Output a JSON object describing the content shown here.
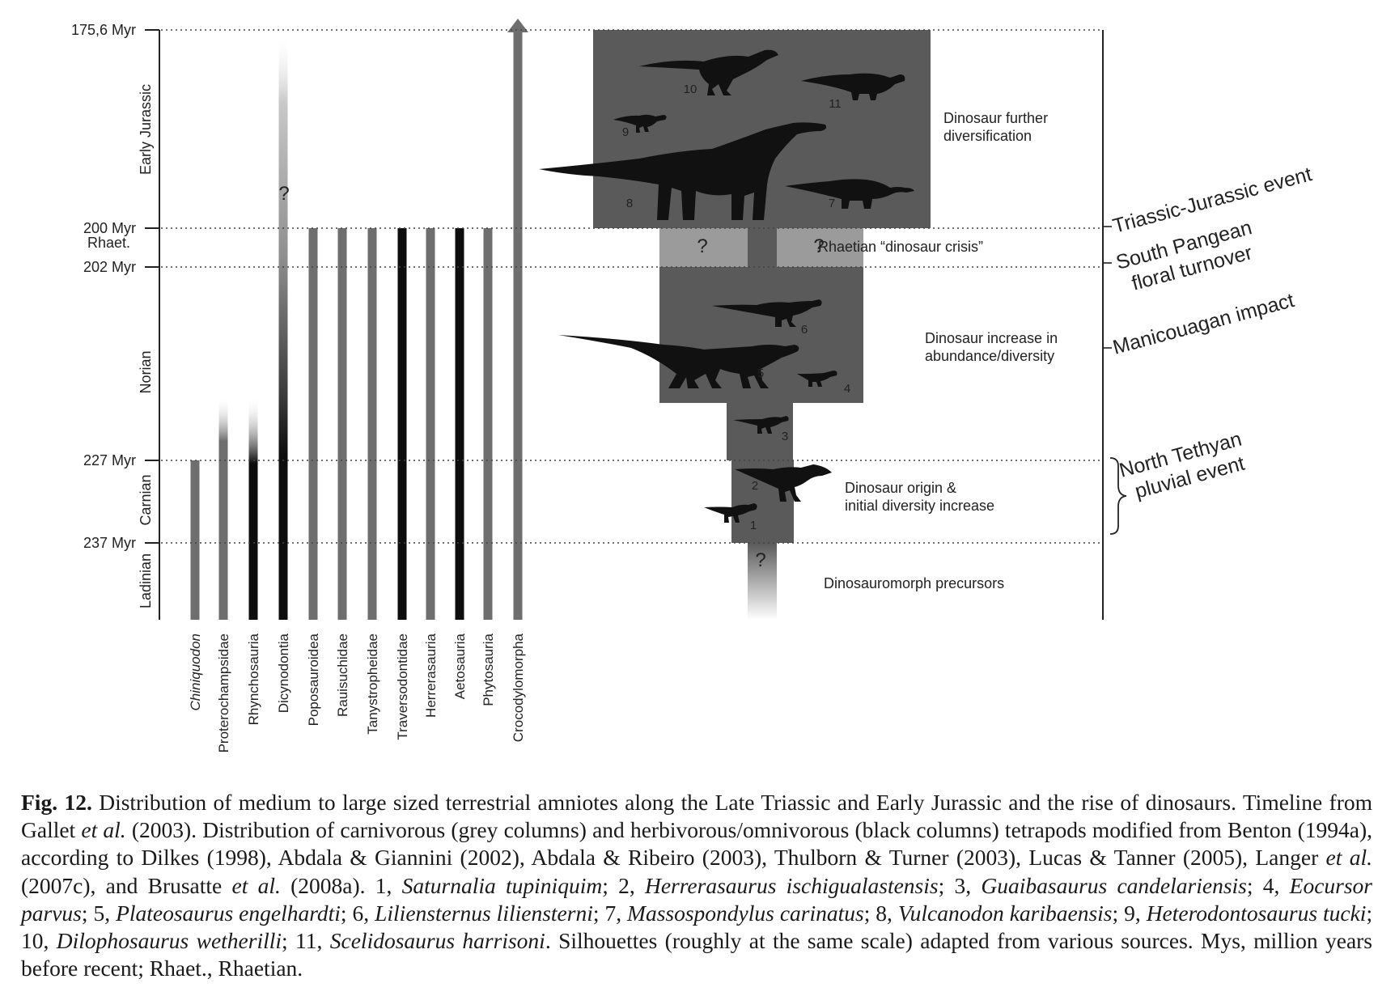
{
  "time_axis": {
    "ticks": [
      {
        "label": "175,6 Myr"
      },
      {
        "label": "200 Myr"
      },
      {
        "label": "202 Myr"
      },
      {
        "label": "227 Myr"
      },
      {
        "label": "237 Myr"
      }
    ],
    "stages": [
      "Early Jurassic",
      "Rhaet.",
      "Norian",
      "Carnian",
      "Ladinian"
    ]
  },
  "taxa": [
    {
      "name": "Chiniquodon",
      "italic": true,
      "diet": "carnivorous"
    },
    {
      "name": "Proterochampsidae",
      "diet": "carnivorous"
    },
    {
      "name": "Rhynchosauria",
      "diet": "herbivorous"
    },
    {
      "name": "Dicynodontia",
      "diet": "herbivorous",
      "uncertain_mark": "?"
    },
    {
      "name": "Poposauroidea",
      "diet": "carnivorous"
    },
    {
      "name": "Rauisuchidae",
      "diet": "carnivorous"
    },
    {
      "name": "Tanystropheidae",
      "diet": "carnivorous"
    },
    {
      "name": "Traversodontidae",
      "diet": "herbivorous"
    },
    {
      "name": "Herrerasauria",
      "diet": "carnivorous"
    },
    {
      "name": "Aetosauria",
      "diet": "herbivorous"
    },
    {
      "name": "Phytosauria",
      "diet": "carnivorous"
    },
    {
      "name": "Crocodylomorpha",
      "diet": "carnivorous"
    }
  ],
  "dinosaur_phases": [
    {
      "label": "Dinosaur further\ndiversification"
    },
    {
      "label": "Rhaetian “dinosaur crisis”"
    },
    {
      "label": "Dinosaur increase in\nabundance/diversity"
    },
    {
      "label": "Dinosaur origin &\ninitial diversity increase"
    },
    {
      "label": "Dinosauromorph precursors"
    }
  ],
  "question_marks": [
    "?",
    "?",
    "?"
  ],
  "silhouette_numbers": [
    "1",
    "2",
    "3",
    "4",
    "5",
    "6",
    "7",
    "8",
    "9",
    "10",
    "11"
  ],
  "events": [
    {
      "label": "Triassic-Jurassic event"
    },
    {
      "label": "South Pangean\nfloral turnover"
    },
    {
      "label": "Manicouagan impact"
    },
    {
      "label": "North Tethyan\npluvial event"
    }
  ],
  "colors": {
    "carnivorous": "#6e6e6e",
    "herbivorous": "#0d0d0d",
    "dino_box": "#5a5a5a",
    "crisis_box": "#9b9b9b",
    "silhouette": "#111111"
  },
  "caption": {
    "label": "Fig. 12.",
    "parts": [
      {
        "t": " Distribution of medium to large sized terrestrial amniotes along the Late Triassic and Early Jurassic and the rise of dinosaurs. Timeline from Gallet "
      },
      {
        "t": "et al.",
        "i": true
      },
      {
        "t": " (2003). Distribution of carnivorous (grey columns) and herbivorous/omnivorous (black columns) tetrapods modified from Benton (1994a), according to Dilkes (1998), Abdala & Giannini (2002), Abdala & Ribeiro (2003), Thulborn & Turner (2003), Lucas & Tanner (2005), Langer "
      },
      {
        "t": "et al.",
        "i": true
      },
      {
        "t": " (2007c), and Brusatte "
      },
      {
        "t": "et al.",
        "i": true
      },
      {
        "t": " (2008a). 1, "
      },
      {
        "t": "Saturnalia tupiniquim",
        "i": true
      },
      {
        "t": "; 2, "
      },
      {
        "t": "Herrerasaurus ischigualastensis",
        "i": true
      },
      {
        "t": "; 3, "
      },
      {
        "t": "Guaibasaurus candelariensis",
        "i": true
      },
      {
        "t": "; 4, "
      },
      {
        "t": "Eocursor parvus",
        "i": true
      },
      {
        "t": "; 5, "
      },
      {
        "t": "Plateosaurus engelhardti",
        "i": true
      },
      {
        "t": "; 6, "
      },
      {
        "t": "Liliensternus liliensterni",
        "i": true
      },
      {
        "t": "; 7, "
      },
      {
        "t": "Massospondylus carinatus",
        "i": true
      },
      {
        "t": "; 8, "
      },
      {
        "t": "Vulcanodon karibaensis",
        "i": true
      },
      {
        "t": "; 9, "
      },
      {
        "t": "Heterodontosaurus tucki",
        "i": true
      },
      {
        "t": "; 10, "
      },
      {
        "t": "Dilophosaurus wetherilli",
        "i": true
      },
      {
        "t": "; 11, "
      },
      {
        "t": "Scelidosaurus harrisoni",
        "i": true
      },
      {
        "t": ". Silhouettes (roughly at the same scale) adapted from various sources. Mys, million years before recent; Rhaet., Rhaetian."
      }
    ]
  }
}
